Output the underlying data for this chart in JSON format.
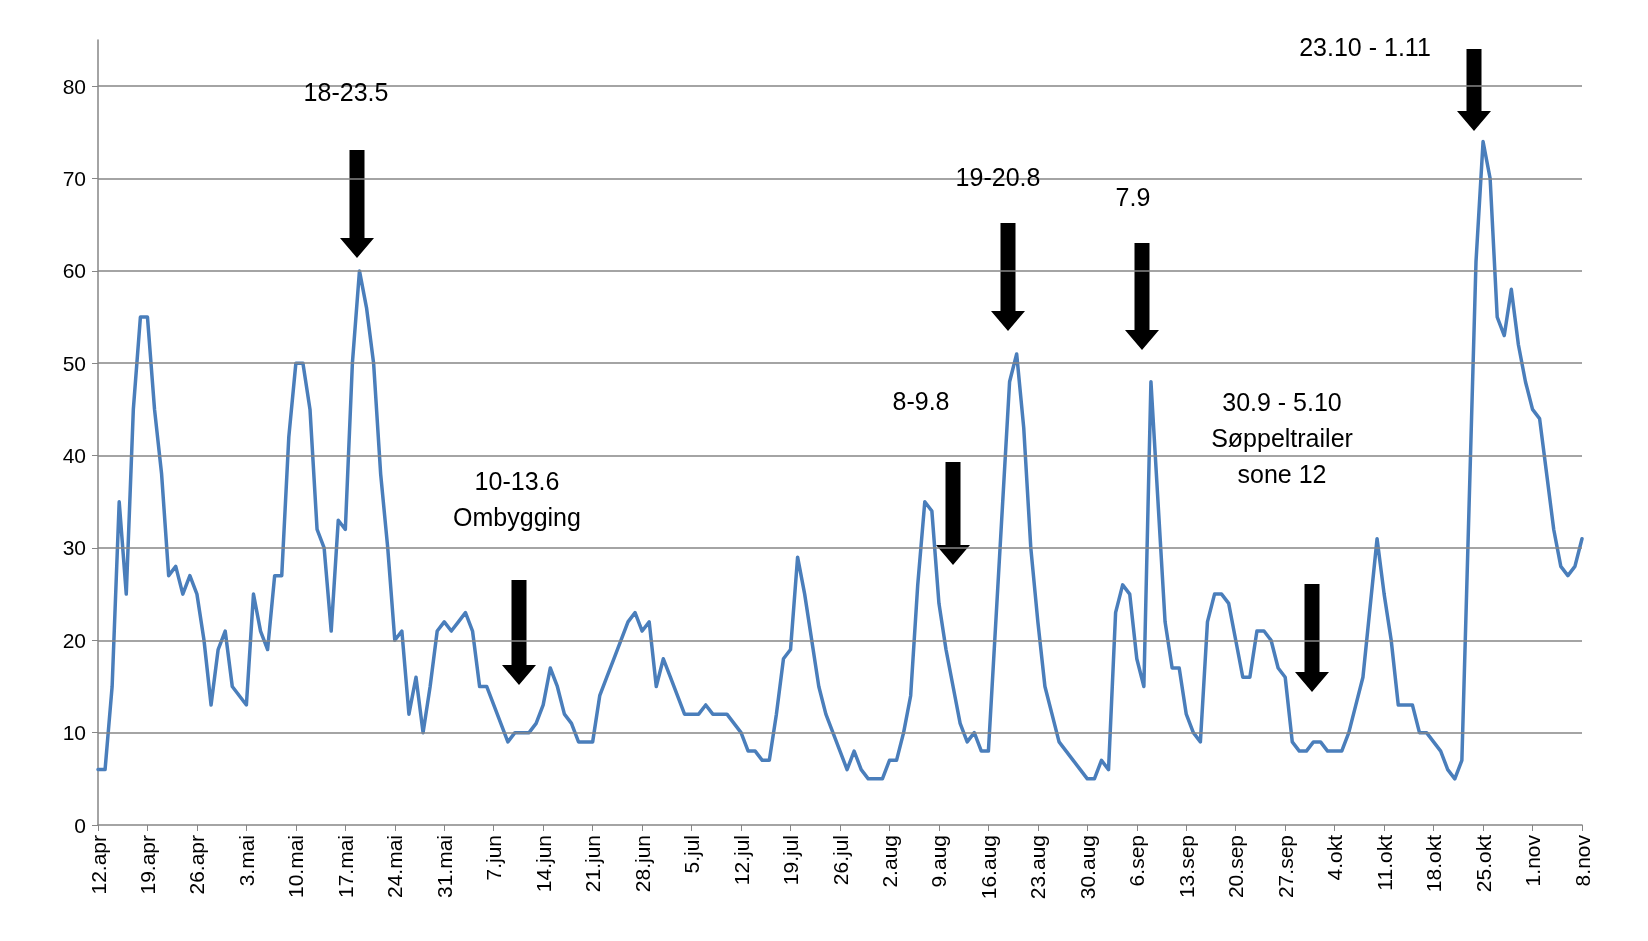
{
  "chart_data": {
    "type": "line",
    "x": [
      "--04-12",
      "--04-13",
      "--04-14",
      "--04-15",
      "--04-16",
      "--04-17",
      "--04-18",
      "--04-19",
      "--04-20",
      "--04-21",
      "--04-22",
      "--04-23",
      "--04-24",
      "--04-25",
      "--04-26",
      "--04-27",
      "--04-28",
      "--04-29",
      "--04-30",
      "--05-01",
      "--05-02",
      "--05-03",
      "--05-04",
      "--05-05",
      "--05-06",
      "--05-07",
      "--05-08",
      "--05-09",
      "--05-10",
      "--05-11",
      "--05-12",
      "--05-13",
      "--05-14",
      "--05-15",
      "--05-16",
      "--05-17",
      "--05-18",
      "--05-19",
      "--05-20",
      "--05-21",
      "--05-22",
      "--05-23",
      "--05-24",
      "--05-25",
      "--05-26",
      "--05-27",
      "--05-28",
      "--05-29",
      "--05-30",
      "--05-31",
      "--06-01",
      "--06-02",
      "--06-03",
      "--06-04",
      "--06-05",
      "--06-06",
      "--06-07",
      "--06-08",
      "--06-09",
      "--06-10",
      "--06-11",
      "--06-12",
      "--06-13",
      "--06-14",
      "--06-15",
      "--06-16",
      "--06-17",
      "--06-18",
      "--06-19",
      "--06-20",
      "--06-21",
      "--06-22",
      "--06-23",
      "--06-24",
      "--06-26",
      "--06-27",
      "--06-28",
      "--06-29",
      "--06-30",
      "--07-01",
      "--07-02",
      "--07-03",
      "--07-04",
      "--07-06",
      "--07-07",
      "--07-08",
      "--07-10",
      "--07-11",
      "--07-12",
      "--07-13",
      "--07-14",
      "--07-15",
      "--07-16",
      "--07-17",
      "--07-18",
      "--07-19",
      "--07-20",
      "--07-21",
      "--07-22",
      "--07-23",
      "--07-24",
      "--07-25",
      "--07-26",
      "--07-27",
      "--07-28",
      "--07-29",
      "--07-30",
      "--08-01",
      "--08-02",
      "--08-03",
      "--08-04",
      "--08-05",
      "--08-06",
      "--08-07",
      "--08-08",
      "--08-09",
      "--08-10",
      "--08-11",
      "--08-12",
      "--08-13",
      "--08-14",
      "--08-15",
      "--08-16",
      "--08-19",
      "--08-20",
      "--08-21",
      "--08-22",
      "--08-23",
      "--08-24",
      "--08-25",
      "--08-26",
      "--08-27",
      "--08-28",
      "--08-29",
      "--08-30",
      "--08-31",
      "--09-01",
      "--09-02",
      "--09-03",
      "--09-04",
      "--09-05",
      "--09-06",
      "--09-07",
      "--09-08",
      "--09-09",
      "--09-10",
      "--09-11",
      "--09-12",
      "--09-13",
      "--09-14",
      "--09-15",
      "--09-16",
      "--09-17",
      "--09-18",
      "--09-19",
      "--09-20",
      "--09-21",
      "--09-22",
      "--09-23",
      "--09-24",
      "--09-25",
      "--09-26",
      "--09-27",
      "--09-28",
      "--09-29",
      "--09-30",
      "--10-01",
      "--10-02",
      "--10-03",
      "--10-05",
      "--10-06",
      "--10-07",
      "--10-08",
      "--10-10",
      "--10-11",
      "--10-12",
      "--10-13",
      "--10-15",
      "--10-16",
      "--10-17",
      "--10-18",
      "--10-19",
      "--10-20",
      "--10-21",
      "--10-22",
      "--10-24",
      "--10-25",
      "--10-26",
      "--10-27",
      "--10-28",
      "--10-29",
      "--10-30",
      "--10-31",
      "--11-01",
      "--11-02",
      "--11-03",
      "--11-04",
      "--11-05",
      "--11-06",
      "--11-07",
      "--11-08"
    ],
    "values": [
      6,
      6,
      15,
      35,
      25,
      45,
      55,
      55,
      45,
      38,
      27,
      28,
      25,
      27,
      25,
      20,
      13,
      19,
      21,
      15,
      14,
      13,
      25,
      21,
      19,
      27,
      27,
      42,
      50,
      50,
      45,
      32,
      30,
      21,
      33,
      32,
      50,
      60,
      56,
      50,
      38,
      30,
      20,
      21,
      12,
      16,
      10,
      15,
      21,
      22,
      21,
      22,
      23,
      21,
      15,
      15,
      13,
      11,
      9,
      10,
      10,
      10,
      11,
      13,
      17,
      15,
      12,
      11,
      9,
      9,
      9,
      14,
      16,
      18,
      22,
      23,
      21,
      22,
      15,
      18,
      16,
      14,
      12,
      12,
      13,
      12,
      12,
      11,
      10,
      8,
      8,
      7,
      7,
      12,
      18,
      19,
      29,
      25,
      20,
      15,
      12,
      10,
      8,
      6,
      8,
      6,
      5,
      5,
      7,
      7,
      10,
      14,
      26,
      35,
      34,
      24,
      19,
      15,
      11,
      9,
      10,
      8,
      8,
      48,
      51,
      43,
      30,
      22,
      15,
      12,
      9,
      8,
      7,
      6,
      5,
      5,
      7,
      6,
      23,
      26,
      25,
      18,
      15,
      48,
      35,
      22,
      17,
      17,
      12,
      10,
      9,
      22,
      25,
      25,
      24,
      20,
      16,
      16,
      21,
      21,
      20,
      17,
      16,
      9,
      8,
      8,
      9,
      9,
      8,
      8,
      10,
      13,
      16,
      31,
      25,
      20,
      13,
      13,
      10,
      10,
      9,
      8,
      6,
      5,
      7,
      61,
      74,
      70,
      55,
      53,
      58,
      52,
      48,
      45,
      44,
      38,
      32,
      28,
      27,
      28,
      31
    ],
    "color": "#4a7ebb",
    "marker": "none",
    "line_style": "solid",
    "grid": "y",
    "xlim": [
      "--04-12",
      "--11-08"
    ],
    "xticks": [
      {
        "value": "--04-12",
        "label": "12.apr"
      },
      {
        "value": "--04-19",
        "label": "19.apr"
      },
      {
        "value": "--04-26",
        "label": "26.apr"
      },
      {
        "value": "--05-03",
        "label": "3.mai"
      },
      {
        "value": "--05-10",
        "label": "10.mai"
      },
      {
        "value": "--05-17",
        "label": "17.mai"
      },
      {
        "value": "--05-24",
        "label": "24.mai"
      },
      {
        "value": "--05-31",
        "label": "31.mai"
      },
      {
        "value": "--06-07",
        "label": "7.jun"
      },
      {
        "value": "--06-14",
        "label": "14.jun"
      },
      {
        "value": "--06-21",
        "label": "21.jun"
      },
      {
        "value": "--06-28",
        "label": "28.jun"
      },
      {
        "value": "--07-05",
        "label": "5.jul"
      },
      {
        "value": "--07-12",
        "label": "12.jul"
      },
      {
        "value": "--07-19",
        "label": "19.jul"
      },
      {
        "value": "--07-26",
        "label": "26.jul"
      },
      {
        "value": "--08-02",
        "label": "2.aug"
      },
      {
        "value": "--08-09",
        "label": "9.aug"
      },
      {
        "value": "--08-16",
        "label": "16.aug"
      },
      {
        "value": "--08-23",
        "label": "23.aug"
      },
      {
        "value": "--08-30",
        "label": "30.aug"
      },
      {
        "value": "--09-06",
        "label": "6.sep"
      },
      {
        "value": "--09-13",
        "label": "13.sep"
      },
      {
        "value": "--09-20",
        "label": "20.sep"
      },
      {
        "value": "--09-27",
        "label": "27.sep"
      },
      {
        "value": "--10-04",
        "label": "4.okt"
      },
      {
        "value": "--10-11",
        "label": "11.okt"
      },
      {
        "value": "--10-18",
        "label": "18.okt"
      },
      {
        "value": "--10-25",
        "label": "25.okt"
      },
      {
        "value": "--11-01",
        "label": "1.nov"
      },
      {
        "value": "--11-08",
        "label": "8.nov"
      }
    ],
    "ylim": [
      0,
      85
    ],
    "yticks": [
      0,
      10,
      20,
      30,
      40,
      50,
      60,
      70,
      80
    ],
    "annotations": [
      "18-23.5",
      "10-13.6\nOmbygging",
      "8-9.8",
      "19-20.8",
      "7.9",
      "30.9 - 5.10\nSøppeltrailer\nsone 12",
      "23.10 - 1.11"
    ]
  }
}
